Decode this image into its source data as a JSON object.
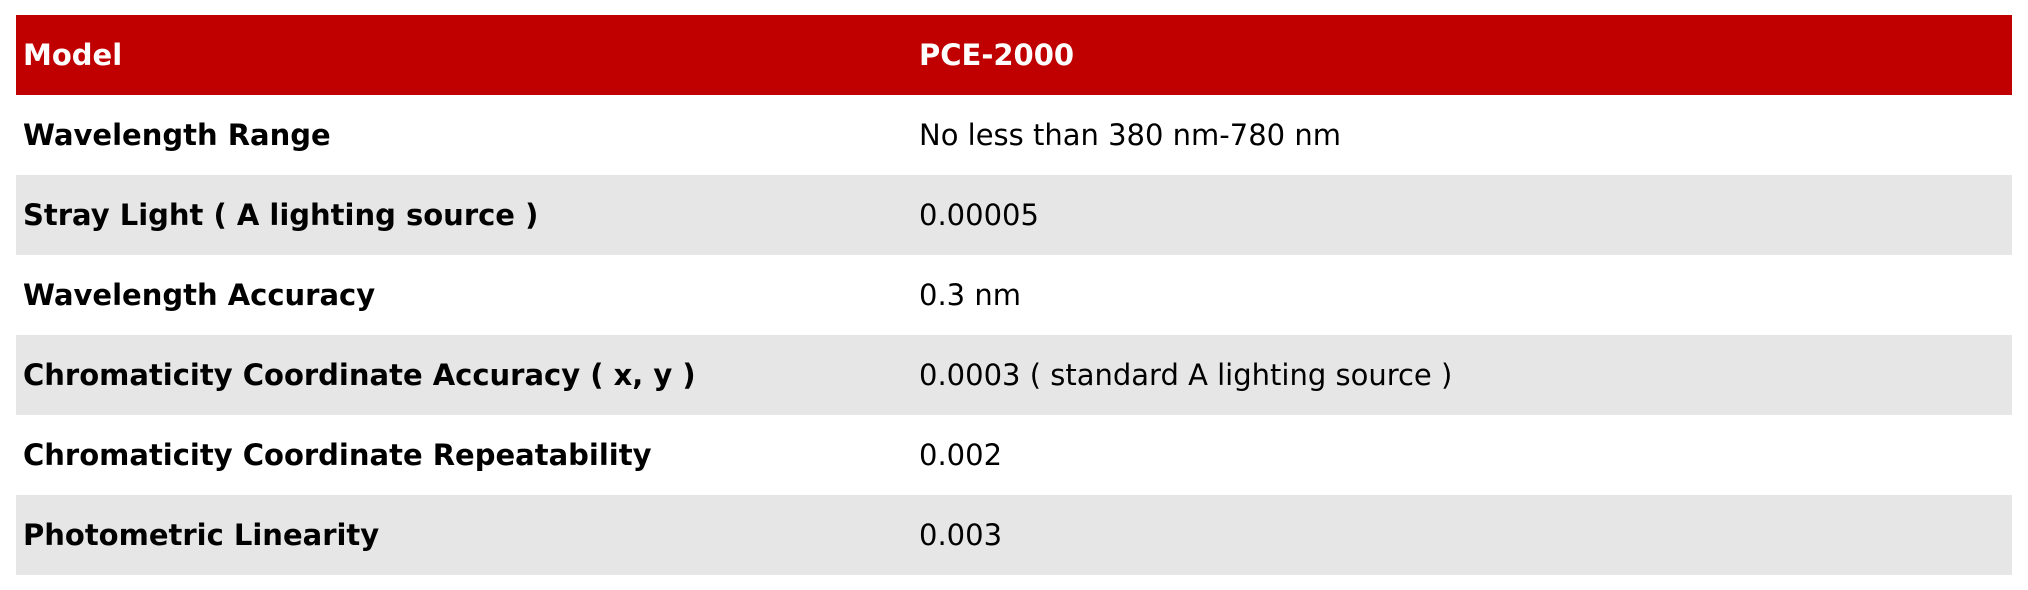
{
  "table": {
    "header": [
      "Model",
      "PCE-2000"
    ],
    "rows": [
      [
        "Wavelength Range",
        "No less than 380 nm-780 nm"
      ],
      [
        "Stray Light ( A lighting source )",
        "0.00005"
      ],
      [
        "Wavelength Accuracy",
        "0.3 nm"
      ],
      [
        "Chromaticity Coordinate Accuracy ( x, y )",
        "0.0003 ( standard A lighting source )"
      ],
      [
        "Chromaticity Coordinate Repeatability",
        "0.002"
      ],
      [
        "Photometric Linearity",
        "0.003"
      ]
    ]
  }
}
